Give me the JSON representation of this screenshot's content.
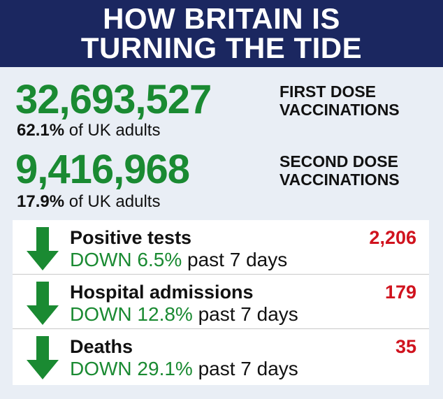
{
  "header": {
    "line1": "HOW BRITAIN IS",
    "line2": "TURNING THE TIDE"
  },
  "vaccinations": [
    {
      "number": "32,693,527",
      "percent": "62.1%",
      "suffix": " of UK adults",
      "label_line1": "FIRST DOSE",
      "label_line2": "VACCINATIONS"
    },
    {
      "number": "9,416,968",
      "percent": "17.9%",
      "suffix": " of UK adults",
      "label_line1": "SECOND DOSE",
      "label_line2": "VACCINATIONS"
    }
  ],
  "metrics": [
    {
      "title": "Positive tests",
      "value": "2,206",
      "change": "DOWN 6.5%",
      "period": " past 7 days"
    },
    {
      "title": "Hospital admissions",
      "value": "179",
      "change": "DOWN 12.8%",
      "period": " past 7 days"
    },
    {
      "title": "Deaths",
      "value": "35",
      "change": "DOWN 29.1%",
      "period": " past 7 days"
    }
  ],
  "colors": {
    "header_bg": "#1b2760",
    "green": "#1a8a32",
    "red": "#d0131e",
    "page_bg": "#e9eef5"
  },
  "icons": {
    "trend": "down-arrow-icon"
  }
}
